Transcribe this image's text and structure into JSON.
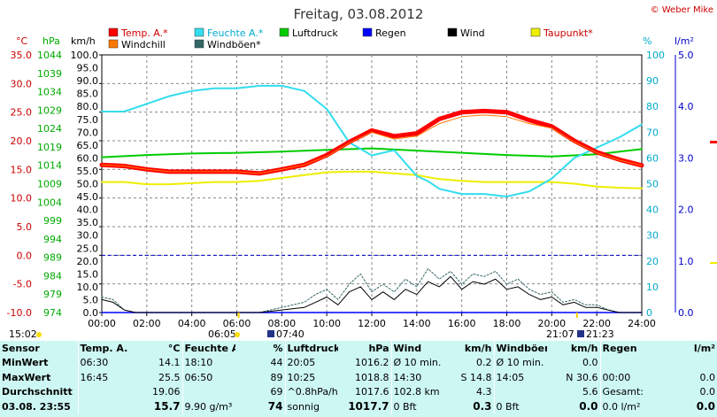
{
  "title": "Freitag, 03.08.2012",
  "credit": "© Weber Mike",
  "legend": [
    {
      "label": "Temp. A.*",
      "color": "#ff0000"
    },
    {
      "label": "Feuchte A.*",
      "color": "#33ddee"
    },
    {
      "label": "Luftdruck",
      "color": "#00cc00"
    },
    {
      "label": "Regen",
      "color": "#0000ff"
    },
    {
      "label": "Wind",
      "color": "#000000"
    },
    {
      "label": "Taupunkt*",
      "color": "#eeee00"
    },
    {
      "label": "Windchill",
      "color": "#ff7700"
    },
    {
      "label": "Windböen*",
      "color": "#336666"
    }
  ],
  "axis_units": {
    "temp": "°C",
    "pressure": "hPa",
    "wind": "km/h",
    "humidity": "%",
    "rain": "l/m²"
  },
  "axes": {
    "temp_ticks": [
      "35.0",
      "30.0",
      "25.0",
      "20.0",
      "15.0",
      "10.0",
      "5.0",
      "0.0",
      "-5.0",
      "-10.0"
    ],
    "pressure_ticks": [
      "1044",
      "1039",
      "1034",
      "1029",
      "1024",
      "1019",
      "1014",
      "1009",
      "1004",
      "999",
      "994",
      "989",
      "984",
      "979",
      "974"
    ],
    "wind_ticks": [
      "100.0",
      "95.0",
      "90.0",
      "85.0",
      "80.0",
      "75.0",
      "70.0",
      "65.0",
      "60.0",
      "55.0",
      "50.0",
      "45.0",
      "40.0",
      "35.0",
      "30.0",
      "25.0",
      "20.0",
      "15.0",
      "10.0",
      "5.0",
      "0.0"
    ],
    "humidity_ticks": [
      "100",
      "90",
      "80",
      "70",
      "60",
      "50",
      "40",
      "30",
      "20",
      "10",
      "0"
    ],
    "rain_ticks": [
      "5.0",
      "4.0",
      "3.0",
      "2.0",
      "1.0",
      "0.0"
    ],
    "x_ticks": [
      "00:00",
      "02:00",
      "04:00",
      "06:00",
      "08:00",
      "10:00",
      "12:00",
      "14:00",
      "16:00",
      "18:00",
      "20:00",
      "22:00",
      "24:00"
    ]
  },
  "sun_marks": {
    "first": "15:02",
    "sunrise": "06:05",
    "civil_rise": "07:40",
    "sunset": "21:07",
    "civil_set": "21:23"
  },
  "chart_data": {
    "type": "line",
    "title": "Freitag, 03.08.2012",
    "x_unit": "hour",
    "xlim": [
      0,
      24
    ],
    "series": [
      {
        "name": "Temp. A.*",
        "axis": "temp",
        "color": "#ff0000",
        "x": [
          0,
          1,
          2,
          3,
          4,
          5,
          6,
          7,
          8,
          9,
          10,
          11,
          12,
          13,
          14,
          15,
          16,
          17,
          18,
          19,
          20,
          21,
          22,
          23,
          24
        ],
        "y": [
          15.8,
          15.6,
          15.0,
          14.6,
          14.6,
          14.6,
          14.6,
          14.3,
          15.0,
          15.8,
          17.5,
          19.8,
          21.8,
          20.8,
          21.3,
          23.8,
          25.0,
          25.2,
          25.0,
          23.6,
          22.5,
          20.0,
          18.0,
          16.7,
          15.7
        ]
      },
      {
        "name": "Windchill",
        "axis": "temp",
        "color": "#ff7700",
        "x": [
          0,
          1,
          2,
          3,
          4,
          5,
          6,
          7,
          8,
          9,
          10,
          11,
          12,
          13,
          14,
          15,
          16,
          17,
          18,
          19,
          20,
          21,
          22,
          23,
          24
        ],
        "y": [
          15.8,
          15.6,
          15.0,
          14.6,
          14.6,
          14.6,
          14.6,
          14.3,
          15.0,
          15.8,
          17.3,
          19.6,
          21.5,
          20.3,
          20.8,
          23.0,
          24.2,
          24.5,
          24.2,
          23.0,
          22.2,
          19.8,
          17.9,
          16.6,
          15.7
        ]
      },
      {
        "name": "Taupunkt*",
        "axis": "temp",
        "color": "#eeee00",
        "x": [
          0,
          1,
          2,
          3,
          4,
          5,
          6,
          7,
          8,
          9,
          10,
          11,
          12,
          13,
          14,
          15,
          16,
          17,
          18,
          19,
          20,
          21,
          22,
          23,
          24
        ],
        "y": [
          12.8,
          12.8,
          12.4,
          12.4,
          12.6,
          12.8,
          12.8,
          13.0,
          13.5,
          14.0,
          14.5,
          14.6,
          14.6,
          14.3,
          14.0,
          13.3,
          13.0,
          12.8,
          12.8,
          12.8,
          12.8,
          12.5,
          12.0,
          11.8,
          11.7
        ]
      },
      {
        "name": "Feuchte A.*",
        "axis": "humidity",
        "color": "#33ddee",
        "x": [
          0,
          1,
          2,
          3,
          4,
          5,
          6,
          7,
          8,
          9,
          10,
          11,
          12,
          13,
          14,
          14.5,
          15,
          16,
          17,
          18,
          19,
          20,
          21,
          22,
          23,
          24
        ],
        "y": [
          78,
          78,
          81,
          84,
          86,
          87,
          87,
          88,
          88,
          86,
          79,
          66,
          61,
          63,
          53,
          51,
          48,
          46,
          46,
          45,
          47,
          52,
          60,
          64,
          68,
          73
        ]
      },
      {
        "name": "Luftdruck",
        "axis": "pressure",
        "color": "#00cc00",
        "x": [
          0,
          2,
          4,
          6,
          8,
          10,
          12,
          14,
          16,
          18,
          20,
          22,
          24
        ],
        "y": [
          1016.2,
          1016.8,
          1017.2,
          1017.4,
          1017.7,
          1018.2,
          1018.6,
          1018.0,
          1017.4,
          1016.8,
          1016.4,
          1017.0,
          1018.4
        ]
      },
      {
        "name": "Wind",
        "axis": "wind",
        "color": "#000000",
        "x": [
          0,
          0.5,
          1,
          1.5,
          2,
          3,
          4,
          5,
          6,
          7,
          8,
          9,
          9.5,
          10,
          10.5,
          11,
          11.5,
          12,
          12.5,
          13,
          13.5,
          14,
          14.5,
          15,
          15.5,
          16,
          16.5,
          17,
          17.5,
          18,
          18.5,
          19,
          19.5,
          20,
          20.5,
          21,
          21.5,
          22,
          22.5,
          23,
          23.5,
          24
        ],
        "y": [
          5,
          4,
          1,
          0,
          0,
          0,
          0,
          0,
          0,
          0,
          1,
          2,
          4,
          6,
          3,
          8,
          10,
          5,
          8,
          5,
          9,
          7,
          12,
          10,
          14,
          9,
          12,
          11,
          13,
          9,
          10,
          7,
          5,
          6,
          3,
          4,
          2,
          2,
          1,
          0,
          0,
          0
        ]
      },
      {
        "name": "Windböen*",
        "axis": "wind",
        "color": "#336666",
        "x": [
          0,
          0.5,
          1,
          1.5,
          2,
          3,
          4,
          5,
          6,
          7,
          8,
          9,
          9.5,
          10,
          10.5,
          11,
          11.5,
          12,
          12.5,
          13,
          13.5,
          14,
          14.5,
          15,
          15.5,
          16,
          16.5,
          17,
          17.5,
          18,
          18.5,
          19,
          19.5,
          20,
          20.5,
          21,
          21.5,
          22,
          22.5,
          23,
          23.5,
          24
        ],
        "y": [
          6,
          5,
          1,
          0,
          0,
          0,
          0,
          0,
          0,
          0,
          2,
          4,
          7,
          9,
          5,
          11,
          15,
          8,
          11,
          8,
          13,
          10,
          17,
          13,
          16,
          11,
          15,
          14,
          16,
          11,
          13,
          9,
          7,
          8,
          4,
          5,
          3,
          3,
          1,
          0,
          0,
          0
        ]
      },
      {
        "name": "Regen",
        "axis": "rain",
        "color": "#0000ff",
        "x": [
          0,
          24
        ],
        "y": [
          0,
          0
        ]
      }
    ],
    "ylim": {
      "temp": [
        -10,
        35
      ],
      "pressure": [
        974,
        1044
      ],
      "wind": [
        0,
        100
      ],
      "humidity": [
        0,
        100
      ],
      "rain": [
        0,
        5
      ]
    },
    "reference_line": {
      "axis": "temp",
      "value": 0.0,
      "color": "#0000cc",
      "style": "dashed"
    },
    "grid": true
  },
  "stats": {
    "headers": [
      "Sensor",
      "Temp. A.",
      "°C",
      "Feuchte A.",
      "%",
      "Luftdruck",
      "hPa",
      "Wind",
      "km/h",
      "Windböen",
      "km/h",
      "Regen",
      "l/m²"
    ],
    "rows": [
      [
        "MinWert",
        "06:30",
        "14.1",
        "18:10",
        "44",
        "20:05",
        "1016.2",
        "Ø 10 min.",
        "0.2",
        "Ø 10 min.",
        "0.0",
        "",
        ""
      ],
      [
        "MaxWert",
        "16:45",
        "25.5",
        "06:50",
        "89",
        "10:25",
        "1018.8",
        "14:30",
        "S 14.8",
        "14:05",
        "N 30.6",
        "00:00",
        "0.0"
      ],
      [
        "Durchschnitt",
        "",
        "19.06",
        "",
        "69",
        "^0.8hPa/h",
        "1017.6",
        "102.8 km",
        "4.3",
        "",
        "5.6",
        "Gesamt:",
        "0.0"
      ],
      [
        "03.08.  23:55",
        "",
        "15.7",
        "9.90 g/m³",
        "74",
        "sonnig",
        "1017.7",
        "0 Bft",
        "0.3",
        "0 Bft",
        "0.0",
        "0.0 l/m²",
        "0.0"
      ]
    ]
  }
}
